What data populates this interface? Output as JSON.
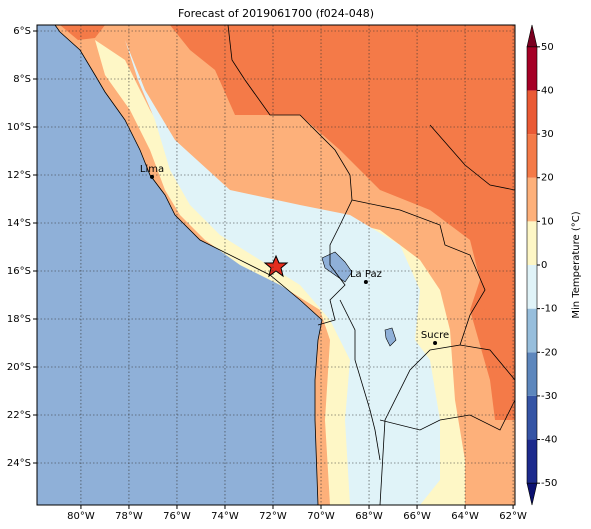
{
  "chart_data": {
    "type": "map",
    "title": "Forecast of 2019061700 (f024-048)",
    "xlim": [
      -81.83,
      -61.92
    ],
    "ylim": [
      -25.75,
      -5.75
    ],
    "xticks": [
      {
        "value": -80,
        "label": "80°W"
      },
      {
        "value": -78,
        "label": "78°W"
      },
      {
        "value": -76,
        "label": "76°W"
      },
      {
        "value": -74,
        "label": "74°W"
      },
      {
        "value": -72,
        "label": "72°W"
      },
      {
        "value": -70,
        "label": "70°W"
      },
      {
        "value": -68,
        "label": "68°W"
      },
      {
        "value": -66,
        "label": "66°W"
      },
      {
        "value": -64,
        "label": "64°W"
      },
      {
        "value": -62,
        "label": "62°W"
      }
    ],
    "yticks": [
      {
        "value": -6,
        "label": "6°S"
      },
      {
        "value": -8,
        "label": "8°S"
      },
      {
        "value": -10,
        "label": "10°S"
      },
      {
        "value": -12,
        "label": "12°S"
      },
      {
        "value": -14,
        "label": "14°S"
      },
      {
        "value": -16,
        "label": "16°S"
      },
      {
        "value": -18,
        "label": "18°S"
      },
      {
        "value": -20,
        "label": "20°S"
      },
      {
        "value": -22,
        "label": "22°S"
      },
      {
        "value": -24,
        "label": "24°S"
      }
    ],
    "grid": true,
    "cities": [
      {
        "name": "Lima",
        "lon": -77.04,
        "lat": -12.08
      },
      {
        "name": "La Paz",
        "lon": -68.13,
        "lat": -16.46
      },
      {
        "name": "Sucre",
        "lon": -65.25,
        "lat": -19.0
      }
    ],
    "colorbar": {
      "label": "Min Temperature (°C)",
      "lim": [
        -55,
        55
      ],
      "ticks": [
        -50,
        -40,
        -30,
        -20,
        -10,
        0,
        10,
        20,
        30,
        40,
        50
      ],
      "colors": [
        "#1c2a8c",
        "#3554a5",
        "#5d87bd",
        "#97bedc",
        "#e0f3f8",
        "#fef7c6",
        "#fdb07a",
        "#f47a48",
        "#ea5a35",
        "#a50026"
      ],
      "under_color": "#0b1070",
      "over_color": "#7a0020"
    }
  }
}
